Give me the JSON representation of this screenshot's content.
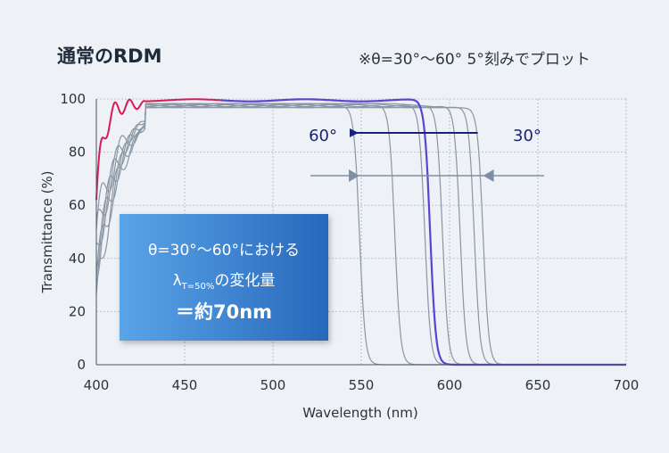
{
  "title": "通常のRDM",
  "note": "※θ=30°〜60° 5°刻みでプロット",
  "callout": {
    "line1": "θ=30°〜60°における",
    "lambda": "λ",
    "lambda_sub": "T=50%",
    "line2_rest": "の変化量",
    "line3": "＝約70nm"
  },
  "annotations": {
    "left_angle": "60°",
    "right_angle": "30°"
  },
  "colors": {
    "gray_curve": "#8a96a4",
    "highlight_red": "#d81b52",
    "highlight_blue": "#5a45d2",
    "arrow_navy": "#17237a",
    "arrow_gray": "#7f8fa3",
    "background": "#eef1f6"
  },
  "chart_data": {
    "type": "line",
    "xlabel": "Wavelength (nm)",
    "ylabel": "Transmittance (%)",
    "xlim": [
      400,
      700
    ],
    "ylim": [
      0,
      100
    ],
    "xticks": [
      400,
      450,
      500,
      550,
      600,
      650,
      700
    ],
    "yticks": [
      0,
      20,
      40,
      60,
      80,
      100
    ],
    "grid": true,
    "series": [
      {
        "angle": 30,
        "edge": 619,
        "highlight": false
      },
      {
        "angle": 35,
        "edge": 614,
        "highlight": false
      },
      {
        "angle": 40,
        "edge": 606,
        "highlight": false
      },
      {
        "angle": 45,
        "edge": 596,
        "highlight": false
      },
      {
        "angle": 50,
        "edge": 586,
        "highlight": false
      },
      {
        "angle": 50,
        "edge": 589,
        "highlight": true
      },
      {
        "angle": 55,
        "edge": 569,
        "highlight": false
      },
      {
        "angle": 60,
        "edge": 549,
        "highlight": false
      }
    ],
    "arrow_60_to_30": {
      "from": 619,
      "to": 549
    },
    "markers": [
      549,
      619
    ]
  }
}
